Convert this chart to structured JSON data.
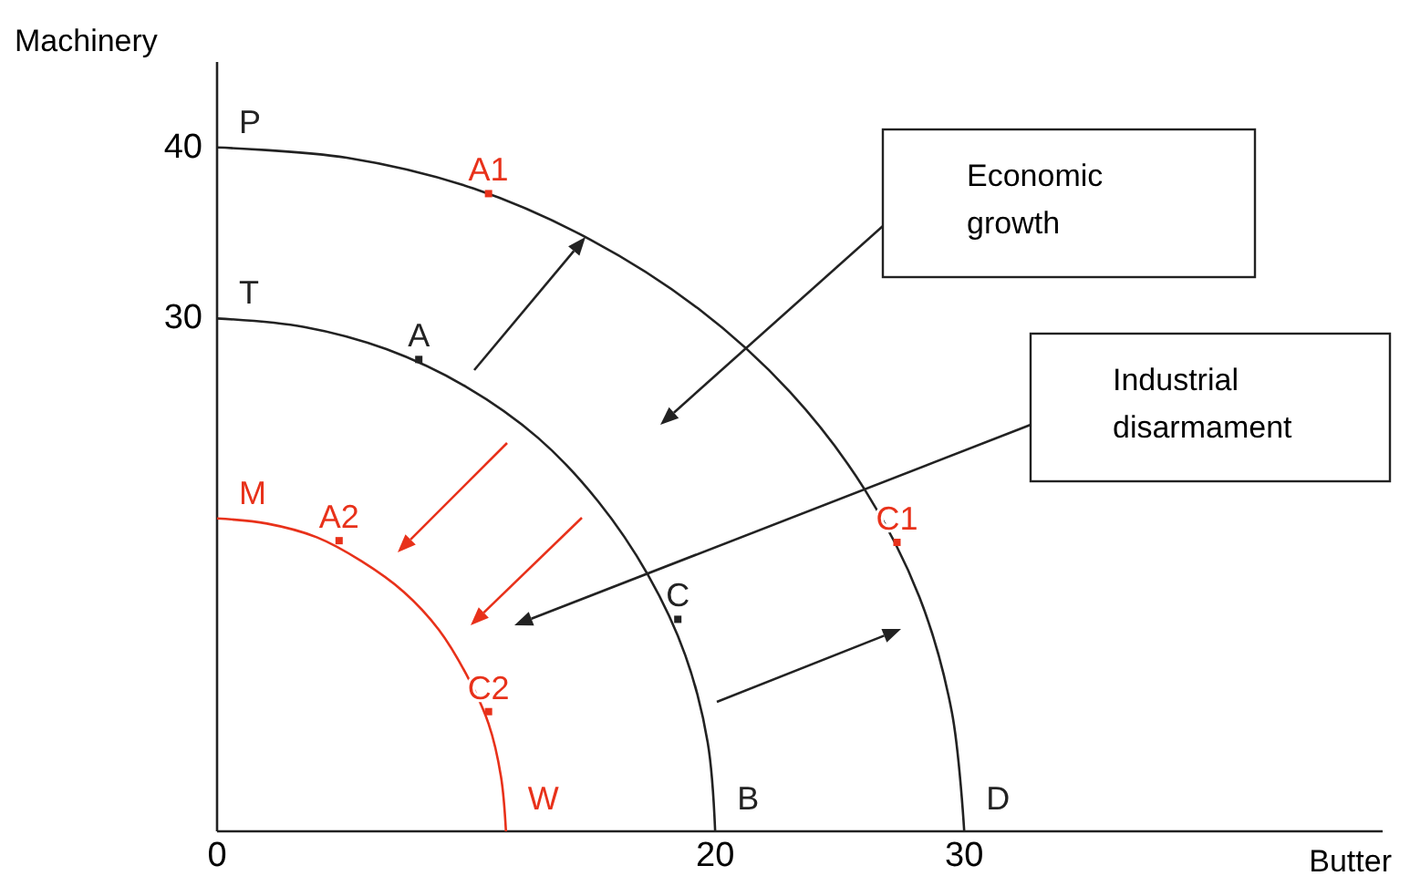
{
  "chart_data": {
    "type": "line",
    "xlabel": "Butter",
    "ylabel": "Machinery",
    "xlim": [
      0,
      46.8
    ],
    "ylim": [
      0,
      45
    ],
    "xticks": [
      0,
      20,
      30
    ],
    "yticks": [
      30,
      40
    ],
    "line_style": "solid",
    "series": [
      {
        "color": "#222222",
        "x": [
          0,
          5.2,
          10.3,
          15,
          19.3,
          23,
          26,
          28.2,
          29.5,
          30
        ],
        "values": [
          40,
          39.4,
          37.6,
          34.6,
          30.6,
          25.7,
          20,
          13.7,
          7,
          0
        ]
      },
      {
        "color": "#222222",
        "x": [
          0,
          3.5,
          6.8,
          10,
          12.9,
          15.3,
          17.3,
          18.8,
          19.7,
          20
        ],
        "values": [
          30,
          29.5,
          28.2,
          26,
          23,
          19.3,
          15,
          10.3,
          5.2,
          0
        ]
      },
      {
        "color": "#e8311a",
        "x": [
          0,
          2,
          4,
          5.8,
          7.5,
          8.9,
          10,
          10.9,
          11.4,
          11.6
        ],
        "values": [
          18.3,
          18,
          17.2,
          15.8,
          14,
          11.8,
          9.2,
          6.3,
          3.2,
          0
        ]
      },
      {
        "type": "scatter",
        "color": "#222222",
        "marker": "square",
        "x": [
          8.1,
          18.5
        ],
        "values": [
          27.6,
          12.4
        ]
      },
      {
        "type": "scatter",
        "color": "#e8311a",
        "marker": "square",
        "x": [
          10.9,
          27.3,
          4.9,
          10.9
        ],
        "values": [
          37.3,
          16.9,
          17,
          7
        ]
      }
    ],
    "annotations": [
      {
        "text": "P",
        "x": 0,
        "y": 40
      },
      {
        "text": "T",
        "x": 0,
        "y": 30
      },
      {
        "text": "M",
        "x": 0,
        "y": 18.3
      },
      {
        "text": "D",
        "x": 30,
        "y": 0
      },
      {
        "text": "B",
        "x": 20,
        "y": 0
      },
      {
        "text": "W",
        "x": 11.6,
        "y": 0
      },
      {
        "text": "A1",
        "x": 10.9,
        "y": 37.3
      },
      {
        "text": "A",
        "x": 8.1,
        "y": 27.6
      },
      {
        "text": "C",
        "x": 18.5,
        "y": 12.4
      },
      {
        "text": "C1",
        "x": 27.3,
        "y": 16.9
      },
      {
        "text": "A2",
        "x": 4.9,
        "y": 17
      },
      {
        "text": "C2",
        "x": 10.9,
        "y": 7
      },
      "Economic growth",
      "Industrial disarmament"
    ]
  }
}
